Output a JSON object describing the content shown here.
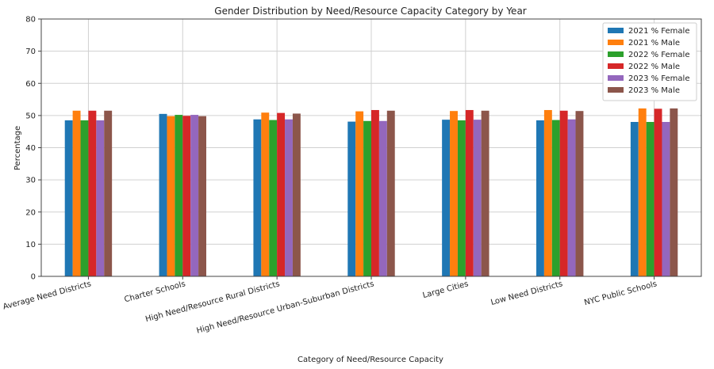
{
  "chart_data": {
    "type": "bar",
    "title": "Gender Distribution by Need/Resource Capacity Category by Year",
    "xlabel": "Category of Need/Resource Capacity",
    "ylabel": "Percentage",
    "ylim": [
      0,
      80
    ],
    "yticks": [
      0,
      10,
      20,
      30,
      40,
      50,
      60,
      70,
      80
    ],
    "grid": true,
    "legend_position": "top-right",
    "categories": [
      "Average Need Districts",
      "Charter Schools",
      "High Need/Resource Rural Districts",
      "High Need/Resource Urban-Suburban Districts",
      "Large Cities",
      "Low Need Districts",
      "NYC Public Schools"
    ],
    "series": [
      {
        "name": "2021 % Female",
        "color": "#1f77b4",
        "values": [
          48.5,
          50.5,
          48.8,
          48.1,
          48.7,
          48.5,
          48.0
        ]
      },
      {
        "name": "2021 % Male",
        "color": "#ff7f0e",
        "values": [
          51.5,
          49.8,
          50.9,
          51.3,
          51.4,
          51.7,
          52.2
        ]
      },
      {
        "name": "2022 % Female",
        "color": "#2ca02c",
        "values": [
          48.5,
          50.2,
          48.6,
          48.3,
          48.5,
          48.6,
          48.0
        ]
      },
      {
        "name": "2022 % Male",
        "color": "#d62728",
        "values": [
          51.5,
          49.9,
          50.8,
          51.7,
          51.7,
          51.5,
          52.1
        ]
      },
      {
        "name": "2023 % Female",
        "color": "#9467bd",
        "values": [
          48.5,
          50.2,
          48.8,
          48.3,
          48.7,
          48.8,
          48.0
        ]
      },
      {
        "name": "2023 % Male",
        "color": "#8c564b",
        "values": [
          51.5,
          49.8,
          50.6,
          51.5,
          51.5,
          51.4,
          52.2
        ]
      }
    ]
  }
}
